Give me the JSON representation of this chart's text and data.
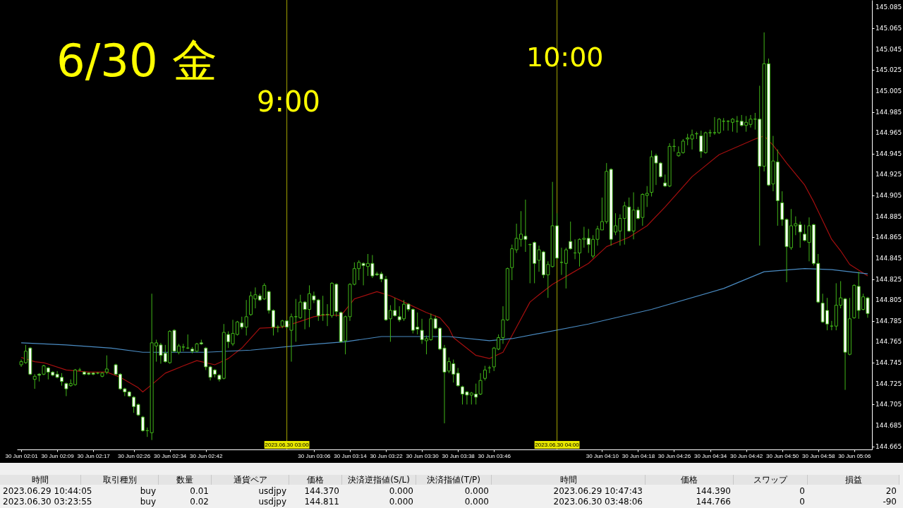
{
  "chart_data": [
    {
      "type": "candlestick",
      "x": [
        "2023-06-30T02:01",
        "2023-06-30T02:02",
        "2023-06-30T02:03",
        "2023-06-30T02:04",
        "2023-06-30T02:05",
        "2023-06-30T02:06",
        "2023-06-30T02:07",
        "2023-06-30T02:08",
        "2023-06-30T02:09",
        "2023-06-30T02:10",
        "2023-06-30T02:11",
        "2023-06-30T02:12",
        "2023-06-30T02:13",
        "2023-06-30T02:14",
        "2023-06-30T02:15",
        "2023-06-30T02:16",
        "2023-06-30T02:17",
        "2023-06-30T02:18",
        "2023-06-30T02:19",
        "2023-06-30T02:20",
        "2023-06-30T02:22",
        "2023-06-30T02:23",
        "2023-06-30T02:24",
        "2023-06-30T02:25",
        "2023-06-30T02:26",
        "2023-06-30T02:27",
        "2023-06-30T02:28",
        "2023-06-30T02:29",
        "2023-06-30T02:30",
        "2023-06-30T02:31",
        "2023-06-30T02:32",
        "2023-06-30T02:33",
        "2023-06-30T02:34",
        "2023-06-30T02:35",
        "2023-06-30T02:36",
        "2023-06-30T02:37",
        "2023-06-30T02:38",
        "2023-06-30T02:39",
        "2023-06-30T02:40",
        "2023-06-30T02:41",
        "2023-06-30T02:42",
        "2023-06-30T02:43",
        "2023-06-30T02:44",
        "2023-06-30T02:45",
        "2023-06-30T02:46",
        "2023-06-30T02:47",
        "2023-06-30T02:48",
        "2023-06-30T02:49",
        "2023-06-30T02:50",
        "2023-06-30T02:51",
        "2023-06-30T02:52",
        "2023-06-30T02:53",
        "2023-06-30T02:54",
        "2023-06-30T02:55",
        "2023-06-30T02:56",
        "2023-06-30T02:57",
        "2023-06-30T02:58",
        "2023-06-30T02:59",
        "2023-06-30T03:00",
        "2023-06-30T03:01",
        "2023-06-30T03:02",
        "2023-06-30T03:03",
        "2023-06-30T03:04",
        "2023-06-30T03:05",
        "2023-06-30T03:06",
        "2023-06-30T03:07",
        "2023-06-30T03:08",
        "2023-06-30T03:09",
        "2023-06-30T03:10",
        "2023-06-30T03:11",
        "2023-06-30T03:12",
        "2023-06-30T03:13",
        "2023-06-30T03:14",
        "2023-06-30T03:15",
        "2023-06-30T03:16",
        "2023-06-30T03:17",
        "2023-06-30T03:18",
        "2023-06-30T03:19",
        "2023-06-30T03:20",
        "2023-06-30T03:21",
        "2023-06-30T03:22",
        "2023-06-30T03:23",
        "2023-06-30T03:24",
        "2023-06-30T03:25",
        "2023-06-30T03:26",
        "2023-06-30T03:27",
        "2023-06-30T03:28",
        "2023-06-30T03:29",
        "2023-06-30T03:30",
        "2023-06-30T03:31",
        "2023-06-30T03:32",
        "2023-06-30T03:33",
        "2023-06-30T03:34",
        "2023-06-30T03:35",
        "2023-06-30T03:36",
        "2023-06-30T03:37",
        "2023-06-30T03:38",
        "2023-06-30T03:39",
        "2023-06-30T03:40",
        "2023-06-30T03:41",
        "2023-06-30T03:42",
        "2023-06-30T03:43",
        "2023-06-30T03:44",
        "2023-06-30T03:45",
        "2023-06-30T03:46",
        "2023-06-30T03:47",
        "2023-06-30T03:48",
        "2023-06-30T03:49",
        "2023-06-30T03:50",
        "2023-06-30T03:51",
        "2023-06-30T03:52",
        "2023-06-30T03:53",
        "2023-06-30T03:54",
        "2023-06-30T03:55",
        "2023-06-30T03:56",
        "2023-06-30T03:57",
        "2023-06-30T03:58",
        "2023-06-30T03:59",
        "2023-06-30T04:00",
        "2023-06-30T04:01",
        "2023-06-30T04:02",
        "2023-06-30T04:03",
        "2023-06-30T04:04",
        "2023-06-30T04:05",
        "2023-06-30T04:06",
        "2023-06-30T04:07",
        "2023-06-30T04:08",
        "2023-06-30T04:09",
        "2023-06-30T04:10",
        "2023-06-30T04:11",
        "2023-06-30T04:12",
        "2023-06-30T04:13",
        "2023-06-30T04:14",
        "2023-06-30T04:15",
        "2023-06-30T04:16",
        "2023-06-30T04:17",
        "2023-06-30T04:18",
        "2023-06-30T04:19",
        "2023-06-30T04:20",
        "2023-06-30T04:21",
        "2023-06-30T04:22",
        "2023-06-30T04:23",
        "2023-06-30T04:24",
        "2023-06-30T04:25",
        "2023-06-30T04:26",
        "2023-06-30T04:27",
        "2023-06-30T04:28",
        "2023-06-30T04:29",
        "2023-06-30T04:30",
        "2023-06-30T04:31",
        "2023-06-30T04:32",
        "2023-06-30T04:33",
        "2023-06-30T04:34",
        "2023-06-30T04:35",
        "2023-06-30T04:36",
        "2023-06-30T04:37",
        "2023-06-30T04:38",
        "2023-06-30T04:39",
        "2023-06-30T04:40",
        "2023-06-30T04:41",
        "2023-06-30T04:42",
        "2023-06-30T04:43",
        "2023-06-30T04:44",
        "2023-06-30T04:45",
        "2023-06-30T04:46",
        "2023-06-30T04:47",
        "2023-06-30T04:48",
        "2023-06-30T04:49",
        "2023-06-30T04:50",
        "2023-06-30T04:51",
        "2023-06-30T04:52",
        "2023-06-30T04:53",
        "2023-06-30T04:54",
        "2023-06-30T04:55",
        "2023-06-30T04:56",
        "2023-06-30T04:57",
        "2023-06-30T04:58",
        "2023-06-30T04:59",
        "2023-06-30T05:00",
        "2023-06-30T05:01",
        "2023-06-30T05:02",
        "2023-06-30T05:03",
        "2023-06-30T05:04",
        "2023-06-30T05:05",
        "2023-06-30T05:06",
        "2023-06-30T05:07",
        "2023-06-30T05:08",
        "2023-06-30T05:09"
      ],
      "ohlc": [
        [
          144.743,
          144.748,
          144.741,
          144.746
        ],
        [
          144.745,
          144.762,
          144.744,
          144.756
        ],
        [
          144.759,
          144.76,
          144.733,
          144.734
        ],
        [
          144.729,
          144.734,
          144.72,
          144.732
        ],
        [
          144.734,
          144.735,
          144.727,
          144.733
        ],
        [
          144.734,
          144.743,
          144.733,
          144.742
        ],
        [
          144.74,
          144.741,
          144.729,
          144.736
        ],
        [
          144.736,
          144.737,
          144.732,
          144.733
        ],
        [
          144.734,
          144.737,
          144.73,
          144.731
        ],
        [
          144.731,
          144.735,
          144.723,
          144.727
        ],
        [
          144.725,
          144.726,
          144.713,
          144.72
        ],
        [
          144.723,
          144.729,
          144.722,
          144.725
        ],
        [
          144.724,
          144.739,
          144.723,
          144.738
        ],
        [
          144.738,
          144.74,
          144.737,
          144.738
        ],
        [
          144.736,
          144.737,
          144.733,
          144.734
        ],
        [
          144.735,
          144.736,
          144.733,
          144.734
        ],
        [
          144.735,
          144.736,
          144.733,
          144.734
        ],
        [
          144.735,
          144.736,
          144.734,
          144.735
        ],
        [
          144.732,
          144.736,
          144.731,
          144.735
        ],
        [
          144.736,
          144.752,
          144.734,
          144.739
        ],
        [
          144.743,
          144.744,
          144.733,
          144.734
        ],
        [
          144.734,
          144.735,
          144.719,
          144.72
        ],
        [
          144.72,
          144.721,
          144.713,
          144.717
        ],
        [
          144.717,
          144.718,
          144.712,
          144.713
        ],
        [
          144.712,
          144.713,
          144.697,
          144.703
        ],
        [
          144.705,
          144.706,
          144.694,
          144.695
        ],
        [
          144.693,
          144.694,
          144.679,
          144.68
        ],
        [
          144.68,
          144.683,
          144.674,
          144.68
        ],
        [
          144.678,
          144.811,
          144.671,
          144.764
        ],
        [
          144.761,
          144.767,
          144.746,
          144.764
        ],
        [
          144.762,
          144.764,
          144.744,
          144.752
        ],
        [
          144.754,
          144.762,
          144.745,
          144.746
        ],
        [
          144.745,
          144.776,
          144.744,
          144.775
        ],
        [
          144.776,
          144.777,
          144.755,
          144.756
        ],
        [
          144.755,
          144.763,
          144.753,
          144.761
        ],
        [
          144.76,
          144.763,
          144.756,
          144.76
        ],
        [
          144.759,
          144.772,
          144.758,
          144.759
        ],
        [
          144.758,
          144.76,
          144.754,
          144.756
        ],
        [
          144.756,
          144.764,
          144.755,
          144.763
        ],
        [
          144.764,
          144.767,
          144.762,
          144.763
        ],
        [
          144.759,
          144.76,
          144.738,
          144.741
        ],
        [
          144.741,
          144.742,
          144.728,
          144.731
        ],
        [
          144.738,
          144.739,
          144.731,
          144.734
        ],
        [
          144.733,
          144.734,
          144.727,
          144.729
        ],
        [
          144.73,
          144.782,
          144.729,
          144.774
        ],
        [
          144.772,
          144.775,
          144.759,
          144.765
        ],
        [
          144.763,
          144.786,
          144.761,
          144.773
        ],
        [
          144.772,
          144.785,
          144.771,
          144.784
        ],
        [
          144.783,
          144.789,
          144.777,
          144.779
        ],
        [
          144.779,
          144.805,
          144.771,
          144.789
        ],
        [
          144.791,
          144.813,
          144.79,
          144.809
        ],
        [
          144.806,
          144.817,
          144.797,
          144.81
        ],
        [
          144.809,
          144.811,
          144.804,
          144.805
        ],
        [
          144.806,
          144.821,
          144.805,
          144.819
        ],
        [
          144.813,
          144.814,
          144.792,
          144.795
        ],
        [
          144.795,
          144.796,
          144.771,
          144.779
        ],
        [
          144.779,
          144.781,
          144.774,
          144.779
        ],
        [
          144.78,
          144.786,
          144.778,
          144.785
        ],
        [
          144.785,
          144.786,
          144.778,
          144.779
        ],
        [
          144.776,
          144.792,
          144.746,
          144.789
        ],
        [
          144.789,
          144.806,
          144.765,
          144.789
        ],
        [
          144.788,
          144.81,
          144.787,
          144.803
        ],
        [
          144.803,
          144.804,
          144.777,
          144.796
        ],
        [
          144.796,
          144.819,
          144.779,
          144.811
        ],
        [
          144.809,
          144.813,
          144.802,
          144.805
        ],
        [
          144.805,
          144.806,
          144.785,
          144.79
        ],
        [
          144.791,
          144.809,
          144.785,
          144.791
        ],
        [
          144.791,
          144.801,
          144.78,
          144.791
        ],
        [
          144.79,
          144.822,
          144.788,
          144.821
        ],
        [
          144.82,
          144.821,
          144.789,
          144.794
        ],
        [
          144.793,
          144.794,
          144.764,
          144.765
        ],
        [
          144.766,
          144.79,
          144.753,
          144.789
        ],
        [
          144.789,
          144.821,
          144.785,
          144.82
        ],
        [
          144.82,
          144.841,
          144.819,
          144.835
        ],
        [
          144.835,
          144.843,
          144.824,
          144.841
        ],
        [
          144.84,
          144.841,
          144.819,
          144.838
        ],
        [
          144.837,
          144.849,
          144.828,
          144.84
        ],
        [
          144.84,
          144.848,
          144.826,
          144.828
        ],
        [
          144.83,
          144.832,
          144.828,
          144.829
        ],
        [
          144.83,
          144.832,
          144.822,
          144.825
        ],
        [
          144.825,
          144.828,
          144.785,
          144.786
        ],
        [
          144.787,
          144.8,
          144.765,
          144.795
        ],
        [
          144.795,
          144.807,
          144.789,
          144.79
        ],
        [
          144.789,
          144.799,
          144.784,
          144.786
        ],
        [
          144.787,
          144.805,
          144.785,
          144.801
        ],
        [
          144.801,
          144.802,
          144.794,
          144.796
        ],
        [
          144.796,
          144.797,
          144.773,
          144.776
        ],
        [
          144.779,
          144.793,
          144.772,
          144.777
        ],
        [
          144.776,
          144.787,
          144.763,
          144.767
        ],
        [
          144.766,
          144.771,
          144.753,
          144.768
        ],
        [
          144.767,
          144.792,
          144.766,
          144.787
        ],
        [
          144.787,
          144.79,
          144.777,
          144.778
        ],
        [
          144.778,
          144.779,
          144.757,
          144.758
        ],
        [
          144.759,
          144.762,
          144.687,
          144.736
        ],
        [
          144.737,
          144.75,
          144.735,
          144.746
        ],
        [
          144.744,
          144.748,
          144.726,
          144.734
        ],
        [
          144.735,
          144.74,
          144.722,
          144.723
        ],
        [
          144.722,
          144.723,
          144.705,
          144.715
        ],
        [
          144.717,
          144.718,
          144.705,
          144.714
        ],
        [
          144.714,
          144.717,
          144.705,
          144.716
        ],
        [
          144.715,
          144.725,
          144.705,
          144.712
        ],
        [
          144.715,
          144.735,
          144.714,
          144.728
        ],
        [
          144.73,
          144.742,
          144.728,
          144.738
        ],
        [
          144.74,
          144.742,
          144.735,
          144.74
        ],
        [
          144.741,
          144.76,
          144.737,
          144.759
        ],
        [
          144.758,
          144.772,
          144.757,
          144.769
        ],
        [
          144.769,
          144.799,
          144.763,
          144.786
        ],
        [
          144.786,
          144.836,
          144.785,
          144.835
        ],
        [
          144.836,
          144.858,
          144.824,
          144.854
        ],
        [
          144.853,
          144.878,
          144.85,
          144.864
        ],
        [
          144.863,
          144.89,
          144.856,
          144.868
        ],
        [
          144.866,
          144.901,
          144.851,
          144.863
        ],
        [
          144.858,
          144.859,
          144.821,
          144.858
        ],
        [
          144.86,
          144.861,
          144.821,
          144.84
        ],
        [
          144.843,
          144.857,
          144.832,
          144.853
        ],
        [
          144.851,
          144.852,
          144.826,
          144.829
        ],
        [
          144.829,
          144.842,
          144.807,
          144.839
        ],
        [
          144.837,
          144.918,
          144.836,
          144.876
        ],
        [
          144.876,
          144.888,
          144.844,
          144.845
        ],
        [
          144.841,
          144.855,
          144.829,
          144.841
        ],
        [
          144.84,
          144.855,
          144.816,
          144.853
        ],
        [
          144.861,
          144.88,
          144.853,
          144.854
        ],
        [
          144.85,
          144.863,
          144.844,
          144.85
        ],
        [
          144.85,
          144.864,
          144.837,
          144.863
        ],
        [
          144.863,
          144.875,
          144.855,
          144.864
        ],
        [
          144.864,
          144.873,
          144.85,
          144.858
        ],
        [
          144.847,
          144.867,
          144.845,
          144.863
        ],
        [
          144.863,
          144.876,
          144.857,
          144.873
        ],
        [
          144.872,
          144.903,
          144.872,
          144.88
        ],
        [
          144.88,
          144.936,
          144.878,
          144.928
        ],
        [
          144.93,
          144.931,
          144.857,
          144.863
        ],
        [
          144.87,
          144.888,
          144.867,
          144.876
        ],
        [
          144.871,
          144.887,
          144.857,
          144.883
        ],
        [
          144.883,
          144.899,
          144.858,
          144.895
        ],
        [
          144.894,
          144.903,
          144.87,
          144.871
        ],
        [
          144.871,
          144.908,
          144.863,
          144.891
        ],
        [
          144.891,
          144.894,
          144.882,
          144.883
        ],
        [
          144.884,
          144.907,
          144.876,
          144.906
        ],
        [
          144.905,
          144.914,
          144.894,
          144.907
        ],
        [
          144.908,
          144.948,
          144.904,
          144.942
        ],
        [
          144.943,
          144.945,
          144.915,
          144.936
        ],
        [
          144.936,
          144.937,
          144.922,
          144.923
        ],
        [
          144.917,
          144.925,
          144.913,
          144.914
        ],
        [
          144.914,
          144.955,
          144.913,
          144.952
        ],
        [
          144.952,
          144.959,
          144.947,
          144.952
        ],
        [
          144.943,
          144.952,
          144.942,
          144.946
        ],
        [
          144.946,
          144.959,
          144.945,
          144.957
        ],
        [
          144.959,
          144.964,
          144.953,
          144.96
        ],
        [
          144.959,
          144.968,
          144.949,
          144.963
        ],
        [
          144.964,
          144.966,
          144.959,
          144.964
        ],
        [
          144.962,
          144.967,
          144.941,
          144.947
        ],
        [
          144.946,
          144.966,
          144.945,
          144.965
        ],
        [
          144.965,
          144.968,
          144.961,
          144.965
        ],
        [
          144.965,
          144.98,
          144.963,
          144.965
        ],
        [
          144.965,
          144.979,
          144.964,
          144.978
        ],
        [
          144.976,
          144.979,
          144.967,
          144.976
        ],
        [
          144.976,
          144.977,
          144.967,
          144.976
        ],
        [
          144.975,
          144.979,
          144.966,
          144.978
        ],
        [
          144.976,
          144.981,
          144.965,
          144.976
        ],
        [
          144.976,
          144.982,
          144.971,
          144.972
        ],
        [
          144.972,
          144.981,
          144.966,
          144.975
        ],
        [
          144.973,
          144.982,
          144.97,
          144.978
        ],
        [
          144.978,
          144.984,
          144.968,
          144.978
        ],
        [
          144.978,
          145.01,
          144.857,
          144.933
        ],
        [
          144.933,
          145.061,
          144.928,
          145.031
        ],
        [
          145.031,
          145.036,
          144.914,
          144.915
        ],
        [
          144.916,
          144.962,
          144.909,
          144.938
        ],
        [
          144.937,
          144.949,
          144.876,
          144.9
        ],
        [
          144.898,
          144.909,
          144.876,
          144.882
        ],
        [
          144.882,
          144.883,
          144.822,
          144.856
        ],
        [
          144.855,
          144.892,
          144.853,
          144.876
        ],
        [
          144.876,
          144.885,
          144.867,
          144.878
        ],
        [
          144.877,
          144.88,
          144.855,
          144.87
        ],
        [
          144.868,
          144.877,
          144.861,
          144.862
        ],
        [
          144.86,
          144.884,
          144.842,
          144.876
        ],
        [
          144.877,
          144.878,
          144.838,
          144.84
        ],
        [
          144.84,
          144.849,
          144.802,
          144.803
        ],
        [
          144.802,
          144.811,
          144.783,
          144.784
        ],
        [
          144.795,
          144.807,
          144.776,
          144.782
        ],
        [
          144.78,
          144.785,
          144.776,
          144.78
        ],
        [
          144.78,
          144.821,
          144.776,
          144.8
        ],
        [
          144.8,
          144.823,
          144.797,
          144.807
        ],
        [
          144.806,
          144.807,
          144.719,
          144.755
        ],
        [
          144.753,
          144.807,
          144.752,
          144.787
        ],
        [
          144.788,
          144.82,
          144.787,
          144.819
        ],
        [
          144.818,
          144.832,
          144.787,
          144.795
        ],
        [
          144.796,
          144.811,
          144.795,
          144.808
        ],
        [
          144.807,
          144.808,
          144.788,
          144.792
        ]
      ],
      "series": [
        {
          "type": "line",
          "color": "#a50f0f",
          "x": [
            "2023-06-30T02:01",
            "2023-06-30T02:04",
            "2023-06-30T02:06",
            "2023-06-30T02:11",
            "2023-06-30T02:16",
            "2023-06-30T02:20",
            "2023-06-30T02:23",
            "2023-06-30T02:27",
            "2023-06-30T02:28",
            "2023-06-30T02:30",
            "2023-06-30T02:33",
            "2023-06-30T02:37",
            "2023-06-30T02:40",
            "2023-06-30T02:44",
            "2023-06-30T02:47",
            "2023-06-30T02:50",
            "2023-06-30T02:54",
            "2023-06-30T02:59",
            "2023-06-30T03:04",
            "2023-06-30T03:06",
            "2023-06-30T03:09",
            "2023-06-30T03:12",
            "2023-06-30T03:15",
            "2023-06-30T03:20",
            "2023-06-30T03:23",
            "2023-06-30T03:25",
            "2023-06-30T03:27",
            "2023-06-30T03:31",
            "2023-06-30T03:34",
            "2023-06-30T03:36",
            "2023-06-30T03:37",
            "2023-06-30T03:42",
            "2023-06-30T03:45",
            "2023-06-30T03:48",
            "2023-06-30T03:51",
            "2023-06-30T03:54",
            "2023-06-30T03:56",
            "2023-06-30T03:59",
            "2023-06-30T04:03",
            "2023-06-30T04:07",
            "2023-06-30T04:11",
            "2023-06-30T04:16",
            "2023-06-30T04:20",
            "2023-06-30T04:24",
            "2023-06-30T04:30",
            "2023-06-30T04:36",
            "2023-06-30T04:44",
            "2023-06-30T04:46",
            "2023-06-30T04:48",
            "2023-06-30T04:51",
            "2023-06-30T04:55",
            "2023-06-30T04:57",
            "2023-06-30T05:01",
            "2023-06-30T05:03",
            "2023-06-30T05:05",
            "2023-06-30T05:09"
          ],
          "values": [
            144.75,
            144.746,
            144.745,
            144.738,
            144.736,
            144.736,
            144.731,
            144.721,
            144.717,
            144.724,
            144.735,
            144.742,
            144.747,
            144.743,
            144.749,
            144.759,
            144.778,
            144.779,
            144.786,
            144.789,
            144.791,
            144.79,
            144.806,
            144.813,
            144.809,
            144.805,
            144.801,
            144.793,
            144.788,
            144.778,
            144.769,
            144.752,
            144.749,
            144.755,
            144.779,
            144.803,
            144.81,
            144.82,
            144.83,
            144.84,
            144.856,
            144.865,
            144.876,
            144.894,
            144.923,
            144.944,
            144.959,
            144.962,
            144.953,
            144.936,
            144.915,
            144.899,
            144.863,
            144.852,
            144.839,
            144.828
          ]
        },
        {
          "type": "line",
          "color": "#4a8bc2",
          "x": [
            "2023-06-30T02:01",
            "2023-06-30T02:11",
            "2023-06-30T02:21",
            "2023-06-30T02:28",
            "2023-06-30T02:42",
            "2023-06-30T02:52",
            "2023-06-30T03:04",
            "2023-06-30T03:13",
            "2023-06-30T03:21",
            "2023-06-30T03:36",
            "2023-06-30T03:45",
            "2023-06-30T03:50",
            "2023-06-30T04:07",
            "2023-06-30T04:21",
            "2023-06-30T04:37",
            "2023-06-30T04:46",
            "2023-06-30T04:55",
            "2023-06-30T05:01",
            "2023-06-30T05:09"
          ],
          "values": [
            144.764,
            144.762,
            144.759,
            144.755,
            144.755,
            144.757,
            144.762,
            144.765,
            144.77,
            144.77,
            144.766,
            144.768,
            144.782,
            144.796,
            144.816,
            144.832,
            144.835,
            144.834,
            144.83
          ]
        }
      ],
      "xlim": [
        "2023-06-30T02:00:50",
        "2023-06-30T05:09:10"
      ],
      "xticks": [
        {
          "value": "2023-06-30T02:01",
          "label": "30 Jun 02:01"
        },
        {
          "value": "2023-06-30T02:09",
          "label": "30 Jun 02:09"
        },
        {
          "value": "2023-06-30T02:17",
          "label": "30 Jun 02:17"
        },
        {
          "value": "2023-06-30T02:26",
          "label": "30 Jun 02:26"
        },
        {
          "value": "2023-06-30T02:34",
          "label": "30 Jun 02:34"
        },
        {
          "value": "2023-06-30T02:42",
          "label": "30 Jun 02:42"
        },
        {
          "value": "2023-06-30T03:06",
          "label": "30 Jun 03:06"
        },
        {
          "value": "2023-06-30T03:14",
          "label": "30 Jun 03:14"
        },
        {
          "value": "2023-06-30T03:22",
          "label": "30 Jun 03:22"
        },
        {
          "value": "2023-06-30T03:30",
          "label": "30 Jun 03:30"
        },
        {
          "value": "2023-06-30T03:38",
          "label": "30 Jun 03:38"
        },
        {
          "value": "2023-06-30T03:46",
          "label": "30 Jun 03:46"
        },
        {
          "value": "2023-06-30T04:10",
          "label": "30 Jun 04:10"
        },
        {
          "value": "2023-06-30T04:18",
          "label": "30 Jun 04:18"
        },
        {
          "value": "2023-06-30T04:26",
          "label": "30 Jun 04:26"
        },
        {
          "value": "2023-06-30T04:34",
          "label": "30 Jun 04:34"
        },
        {
          "value": "2023-06-30T04:42",
          "label": "30 Jun 04:42"
        },
        {
          "value": "2023-06-30T04:50",
          "label": "30 Jun 04:50"
        },
        {
          "value": "2023-06-30T04:58",
          "label": "30 Jun 04:58"
        },
        {
          "value": "2023-06-30T05:06",
          "label": "30 Jun 05:06"
        }
      ],
      "ylim": [
        144.662,
        145.092
      ],
      "yticks": [
        144.665,
        144.685,
        144.705,
        144.725,
        144.745,
        144.765,
        144.785,
        144.805,
        144.825,
        144.845,
        144.865,
        144.885,
        144.905,
        144.925,
        144.945,
        144.965,
        144.985,
        145.005,
        145.025,
        145.045,
        145.065,
        145.085
      ],
      "ref_lines": [
        {
          "axis": "x",
          "value": "2023-06-30T03:00",
          "label": "2023.06.30 03:00",
          "color": "#a3a300"
        },
        {
          "axis": "x",
          "value": "2023-06-30T04:00",
          "label": "2023.06.30 04:00",
          "color": "#a3a300"
        }
      ],
      "annotations": [
        "6/30 金",
        "9:00",
        "10:00"
      ]
    },
    {
      "type": "other",
      "annotations": [
        "時間",
        "取引種別",
        "数量",
        "通貨ペア",
        "価格",
        "決済逆指値(S/L)",
        "決済指値(T/P)",
        "時間",
        "価格",
        "スワップ",
        "損益",
        "2023.06.29 10:44:05",
        "buy",
        "0.01",
        "usdjpy",
        "144.370",
        "0.000",
        "0.000",
        "2023.06.29 10:47:43",
        "144.390",
        "0",
        "20",
        "2023.06.30 03:23:55",
        "buy",
        "0.02",
        "usdjpy",
        "144.811",
        "0.000",
        "0.000",
        "2023.06.30 03:48:06",
        "144.766",
        "0",
        "-90"
      ]
    }
  ]
}
